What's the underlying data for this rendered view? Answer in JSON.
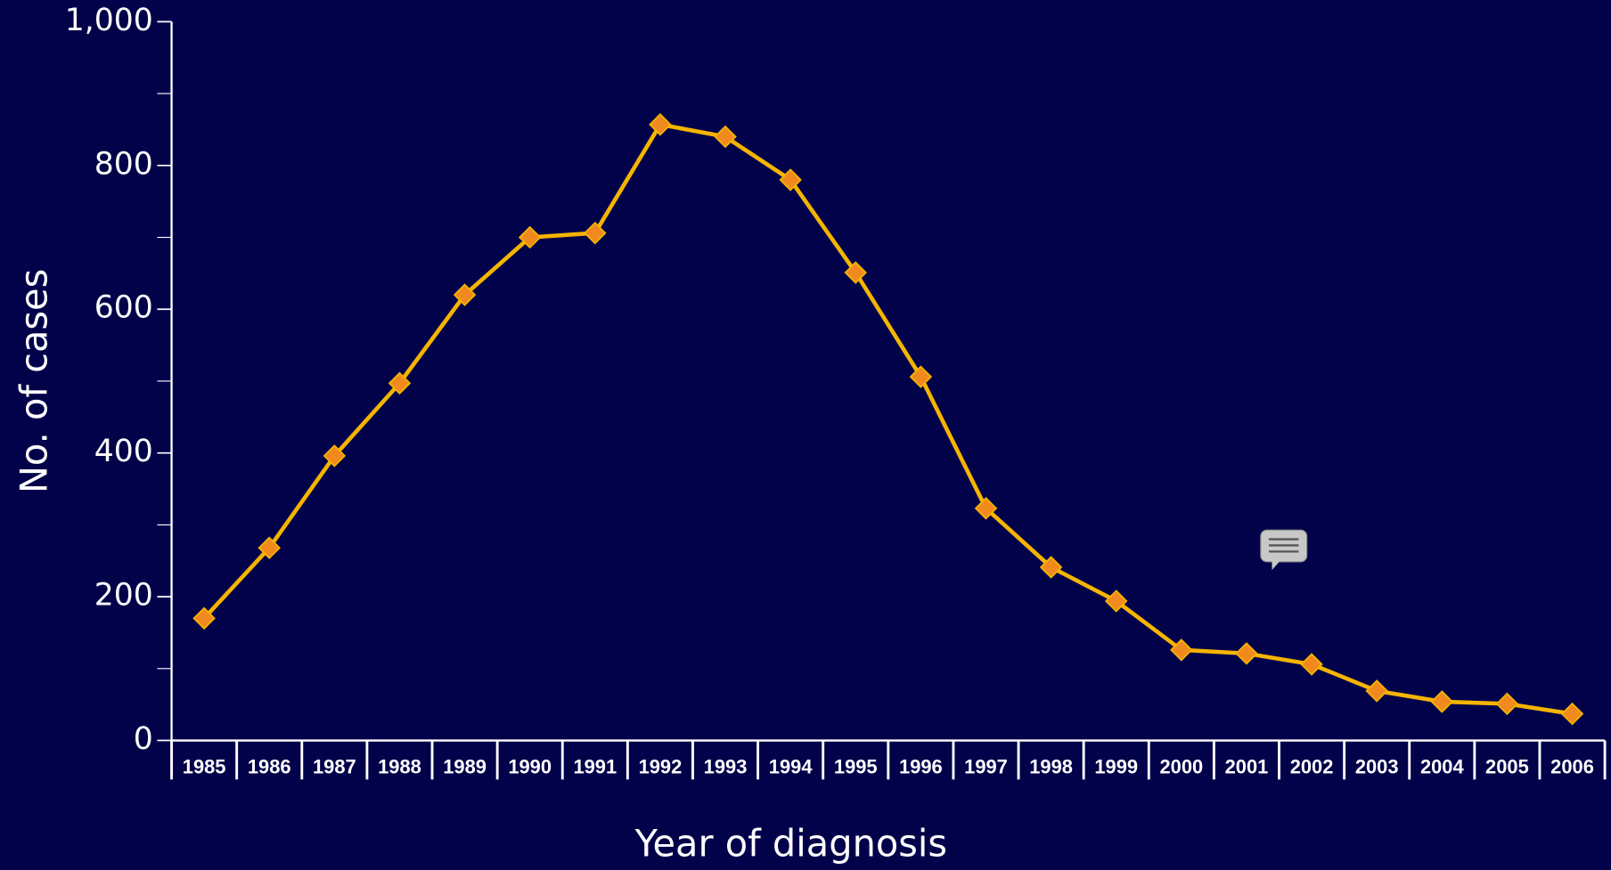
{
  "chart_data": {
    "type": "line",
    "x_label": "Year of diagnosis",
    "y_label": "No. of cases",
    "categories": [
      "1985",
      "1986",
      "1987",
      "1988",
      "1989",
      "1990",
      "1991",
      "1992",
      "1993",
      "1994",
      "1995",
      "1996",
      "1997",
      "1998",
      "1999",
      "2000",
      "2001",
      "2002",
      "2003",
      "2004",
      "2005",
      "2006"
    ],
    "series": [
      {
        "name": "Cases",
        "color": "#f5b400",
        "marker_color": "#f08a1e",
        "values": [
          170,
          268,
          396,
          497,
          620,
          700,
          706,
          857,
          840,
          780,
          651,
          506,
          323,
          241,
          194,
          126,
          121,
          106,
          69,
          54,
          51,
          37
        ]
      }
    ],
    "ylim": [
      0,
      1000
    ],
    "yticks": [
      0,
      200,
      400,
      600,
      800,
      {
        "value": 1000,
        "label": "1,000"
      }
    ],
    "yticks_minor": [
      100,
      300,
      500,
      700,
      900
    ]
  }
}
